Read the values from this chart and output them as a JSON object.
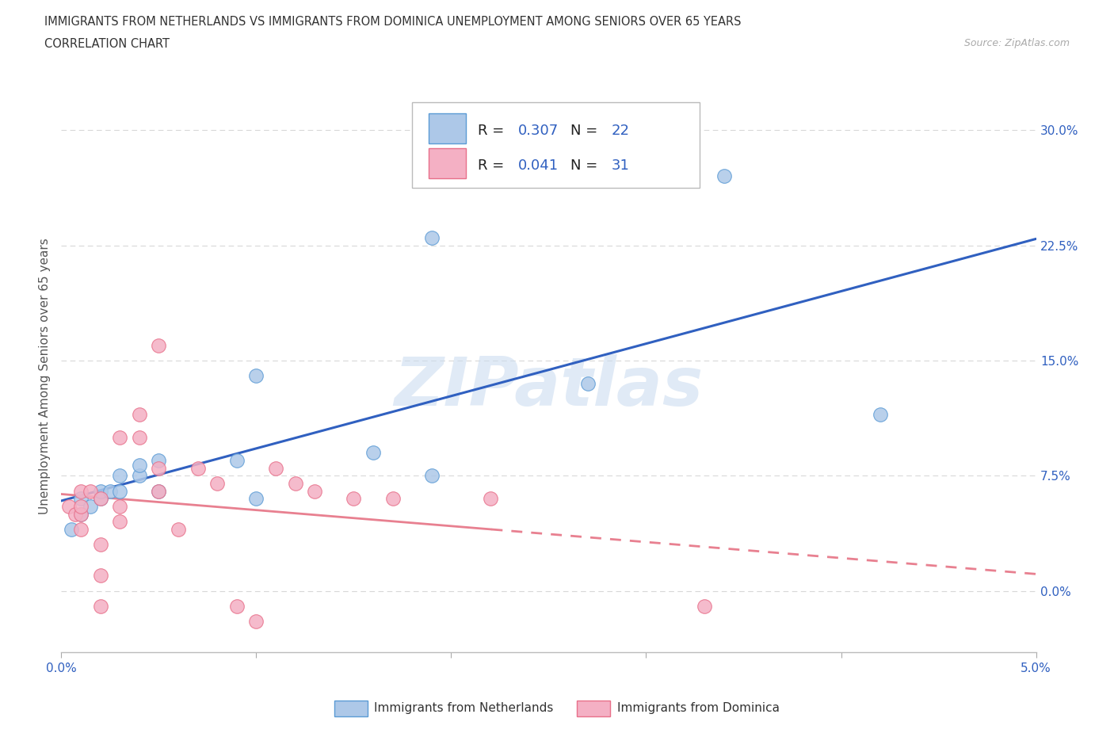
{
  "title_line1": "IMMIGRANTS FROM NETHERLANDS VS IMMIGRANTS FROM DOMINICA UNEMPLOYMENT AMONG SENIORS OVER 65 YEARS",
  "title_line2": "CORRELATION CHART",
  "source_text": "Source: ZipAtlas.com",
  "ylabel": "Unemployment Among Seniors over 65 years",
  "xlim": [
    0.0,
    0.05
  ],
  "ylim": [
    -0.04,
    0.32
  ],
  "yticks": [
    0.0,
    0.075,
    0.15,
    0.225,
    0.3
  ],
  "yticklabels": [
    "0.0%",
    "7.5%",
    "15.0%",
    "22.5%",
    "30.0%"
  ],
  "xticks": [
    0.0,
    0.01,
    0.02,
    0.03,
    0.04,
    0.05
  ],
  "xticklabels": [
    "0.0%",
    "",
    "",
    "",
    "",
    "5.0%"
  ],
  "netherlands_fill": "#adc8e8",
  "netherlands_edge": "#5b9bd5",
  "dominica_fill": "#f4b0c4",
  "dominica_edge": "#e8708a",
  "trend_nl": "#3060c0",
  "trend_dom": "#e88090",
  "R_nl": "0.307",
  "N_nl": "22",
  "R_dom": "0.041",
  "N_dom": "31",
  "blue_text": "#3060c0",
  "nl_x": [
    0.0005,
    0.001,
    0.001,
    0.0015,
    0.002,
    0.002,
    0.0025,
    0.003,
    0.003,
    0.004,
    0.004,
    0.005,
    0.005,
    0.009,
    0.01,
    0.016,
    0.019,
    0.027,
    0.034,
    0.042,
    0.019,
    0.01
  ],
  "nl_y": [
    0.04,
    0.05,
    0.06,
    0.055,
    0.06,
    0.065,
    0.065,
    0.065,
    0.075,
    0.075,
    0.082,
    0.065,
    0.085,
    0.085,
    0.14,
    0.09,
    0.23,
    0.135,
    0.27,
    0.115,
    0.075,
    0.06
  ],
  "dom_x": [
    0.0004,
    0.0007,
    0.001,
    0.001,
    0.001,
    0.001,
    0.0015,
    0.002,
    0.002,
    0.002,
    0.002,
    0.003,
    0.003,
    0.003,
    0.004,
    0.004,
    0.005,
    0.005,
    0.005,
    0.006,
    0.007,
    0.008,
    0.009,
    0.01,
    0.011,
    0.012,
    0.013,
    0.015,
    0.017,
    0.022,
    0.033
  ],
  "dom_y": [
    0.055,
    0.05,
    0.04,
    0.05,
    0.055,
    0.065,
    0.065,
    -0.01,
    0.01,
    0.03,
    0.06,
    0.045,
    0.055,
    0.1,
    0.1,
    0.115,
    0.065,
    0.08,
    0.16,
    0.04,
    0.08,
    0.07,
    -0.01,
    -0.02,
    0.08,
    0.07,
    0.065,
    0.06,
    0.06,
    0.06,
    -0.01
  ],
  "watermark_text": "ZIPatlas",
  "bg": "#ffffff",
  "grid_color": "#d8d8d8",
  "marker_size": 160
}
